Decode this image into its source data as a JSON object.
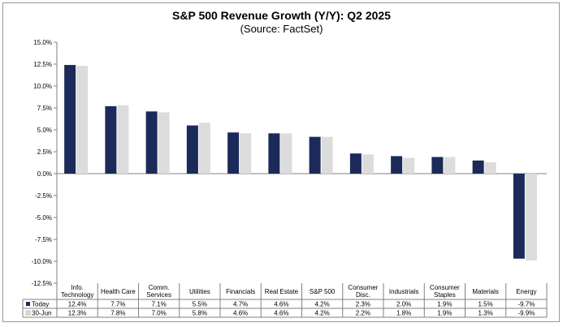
{
  "chart_data": {
    "type": "bar",
    "title": "S&P 500 Revenue Growth (Y/Y):  Q2 2025",
    "subtitle": "(Source: FactSet)",
    "categories": [
      [
        "Info.",
        "Technology"
      ],
      [
        "Health Care"
      ],
      [
        "Comm.",
        "Services"
      ],
      [
        "Utilities"
      ],
      [
        "Financials"
      ],
      [
        "Real Estate"
      ],
      [
        "S&P 500"
      ],
      [
        "Consumer",
        "Disc."
      ],
      [
        "Industrials"
      ],
      [
        "Consumer",
        "Staples"
      ],
      [
        "Materials"
      ],
      [
        "Energy"
      ]
    ],
    "series": [
      {
        "name": "Today",
        "color": "#1b2a59",
        "values": [
          12.4,
          7.7,
          7.1,
          5.5,
          4.7,
          4.6,
          4.2,
          2.3,
          2.0,
          1.9,
          1.5,
          -9.7
        ],
        "labels": [
          "12.4%",
          "7.7%",
          "7.1%",
          "5.5%",
          "4.7%",
          "4.6%",
          "4.2%",
          "2.3%",
          "2.0%",
          "1.9%",
          "1.5%",
          "-9.7%"
        ]
      },
      {
        "name": "30-Jun",
        "color": "#dcdcdc",
        "values": [
          12.3,
          7.8,
          7.0,
          5.8,
          4.6,
          4.6,
          4.2,
          2.2,
          1.8,
          1.9,
          1.3,
          -9.9
        ],
        "labels": [
          "12.3%",
          "7.8%",
          "7.0%",
          "5.8%",
          "4.6%",
          "4.6%",
          "4.2%",
          "2.2%",
          "1.8%",
          "1.9%",
          "1.3%",
          "-9.9%"
        ]
      }
    ],
    "ylim": [
      -12.5,
      15.0
    ],
    "yticks": [
      15.0,
      12.5,
      10.0,
      7.5,
      5.0,
      2.5,
      0.0,
      -2.5,
      -5.0,
      -7.5,
      -10.0,
      -12.5
    ],
    "ytick_labels": [
      "15.0%",
      "12.5%",
      "10.0%",
      "7.5%",
      "5.0%",
      "2.5%",
      "0.0%",
      "-2.5%",
      "-5.0%",
      "-7.5%",
      "-10.0%",
      "-12.5%"
    ],
    "grid": false,
    "legend": "data-table"
  }
}
